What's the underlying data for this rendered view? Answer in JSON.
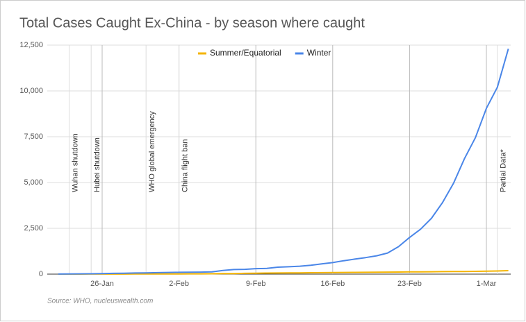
{
  "chart_data": {
    "type": "line",
    "title": "Total Cases Caught Ex-China - by season where caught",
    "source": "Source: WHO, nucleuswealth.com",
    "categories": [
      null,
      null,
      null,
      null,
      "26-Jan",
      null,
      null,
      null,
      null,
      null,
      null,
      "2-Feb",
      null,
      null,
      null,
      null,
      null,
      null,
      "9-Feb",
      null,
      null,
      null,
      null,
      null,
      null,
      "16-Feb",
      null,
      null,
      null,
      null,
      null,
      null,
      "23-Feb",
      null,
      null,
      null,
      null,
      null,
      null,
      "1-Mar",
      null,
      null
    ],
    "series": [
      {
        "name": "Summer/Equatorial",
        "color": "#f4b400",
        "values": [
          0,
          0,
          1,
          2,
          3,
          4,
          5,
          6,
          7,
          8,
          10,
          12,
          14,
          16,
          20,
          25,
          30,
          40,
          50,
          55,
          60,
          65,
          70,
          75,
          80,
          85,
          90,
          95,
          100,
          105,
          110,
          115,
          120,
          125,
          130,
          135,
          140,
          145,
          150,
          160,
          170,
          190
        ]
      },
      {
        "name": "Winter",
        "color": "#4a86e8",
        "values": [
          5,
          10,
          15,
          20,
          30,
          40,
          50,
          60,
          70,
          80,
          90,
          100,
          105,
          110,
          120,
          200,
          250,
          260,
          300,
          310,
          380,
          400,
          430,
          480,
          560,
          630,
          730,
          820,
          900,
          1000,
          1150,
          1500,
          2000,
          2450,
          3050,
          3900,
          4950,
          6300,
          7450,
          9050,
          10200,
          12300
        ]
      }
    ],
    "annotations": [
      "Wuhan shutdown",
      "Hubei shutdown",
      "WHO global emergency",
      "China flight ban",
      "Partial Data*"
    ],
    "ylim": [
      0,
      12500
    ],
    "yticks": [
      0,
      {
        "value": 2500,
        "label": "2,500"
      },
      {
        "value": 5000,
        "label": "5,000"
      },
      {
        "value": 7500,
        "label": "7,500"
      },
      {
        "value": 10000,
        "label": "10,000"
      },
      {
        "value": 12500,
        "label": "12,500"
      }
    ],
    "grid": true,
    "legend": "top"
  }
}
